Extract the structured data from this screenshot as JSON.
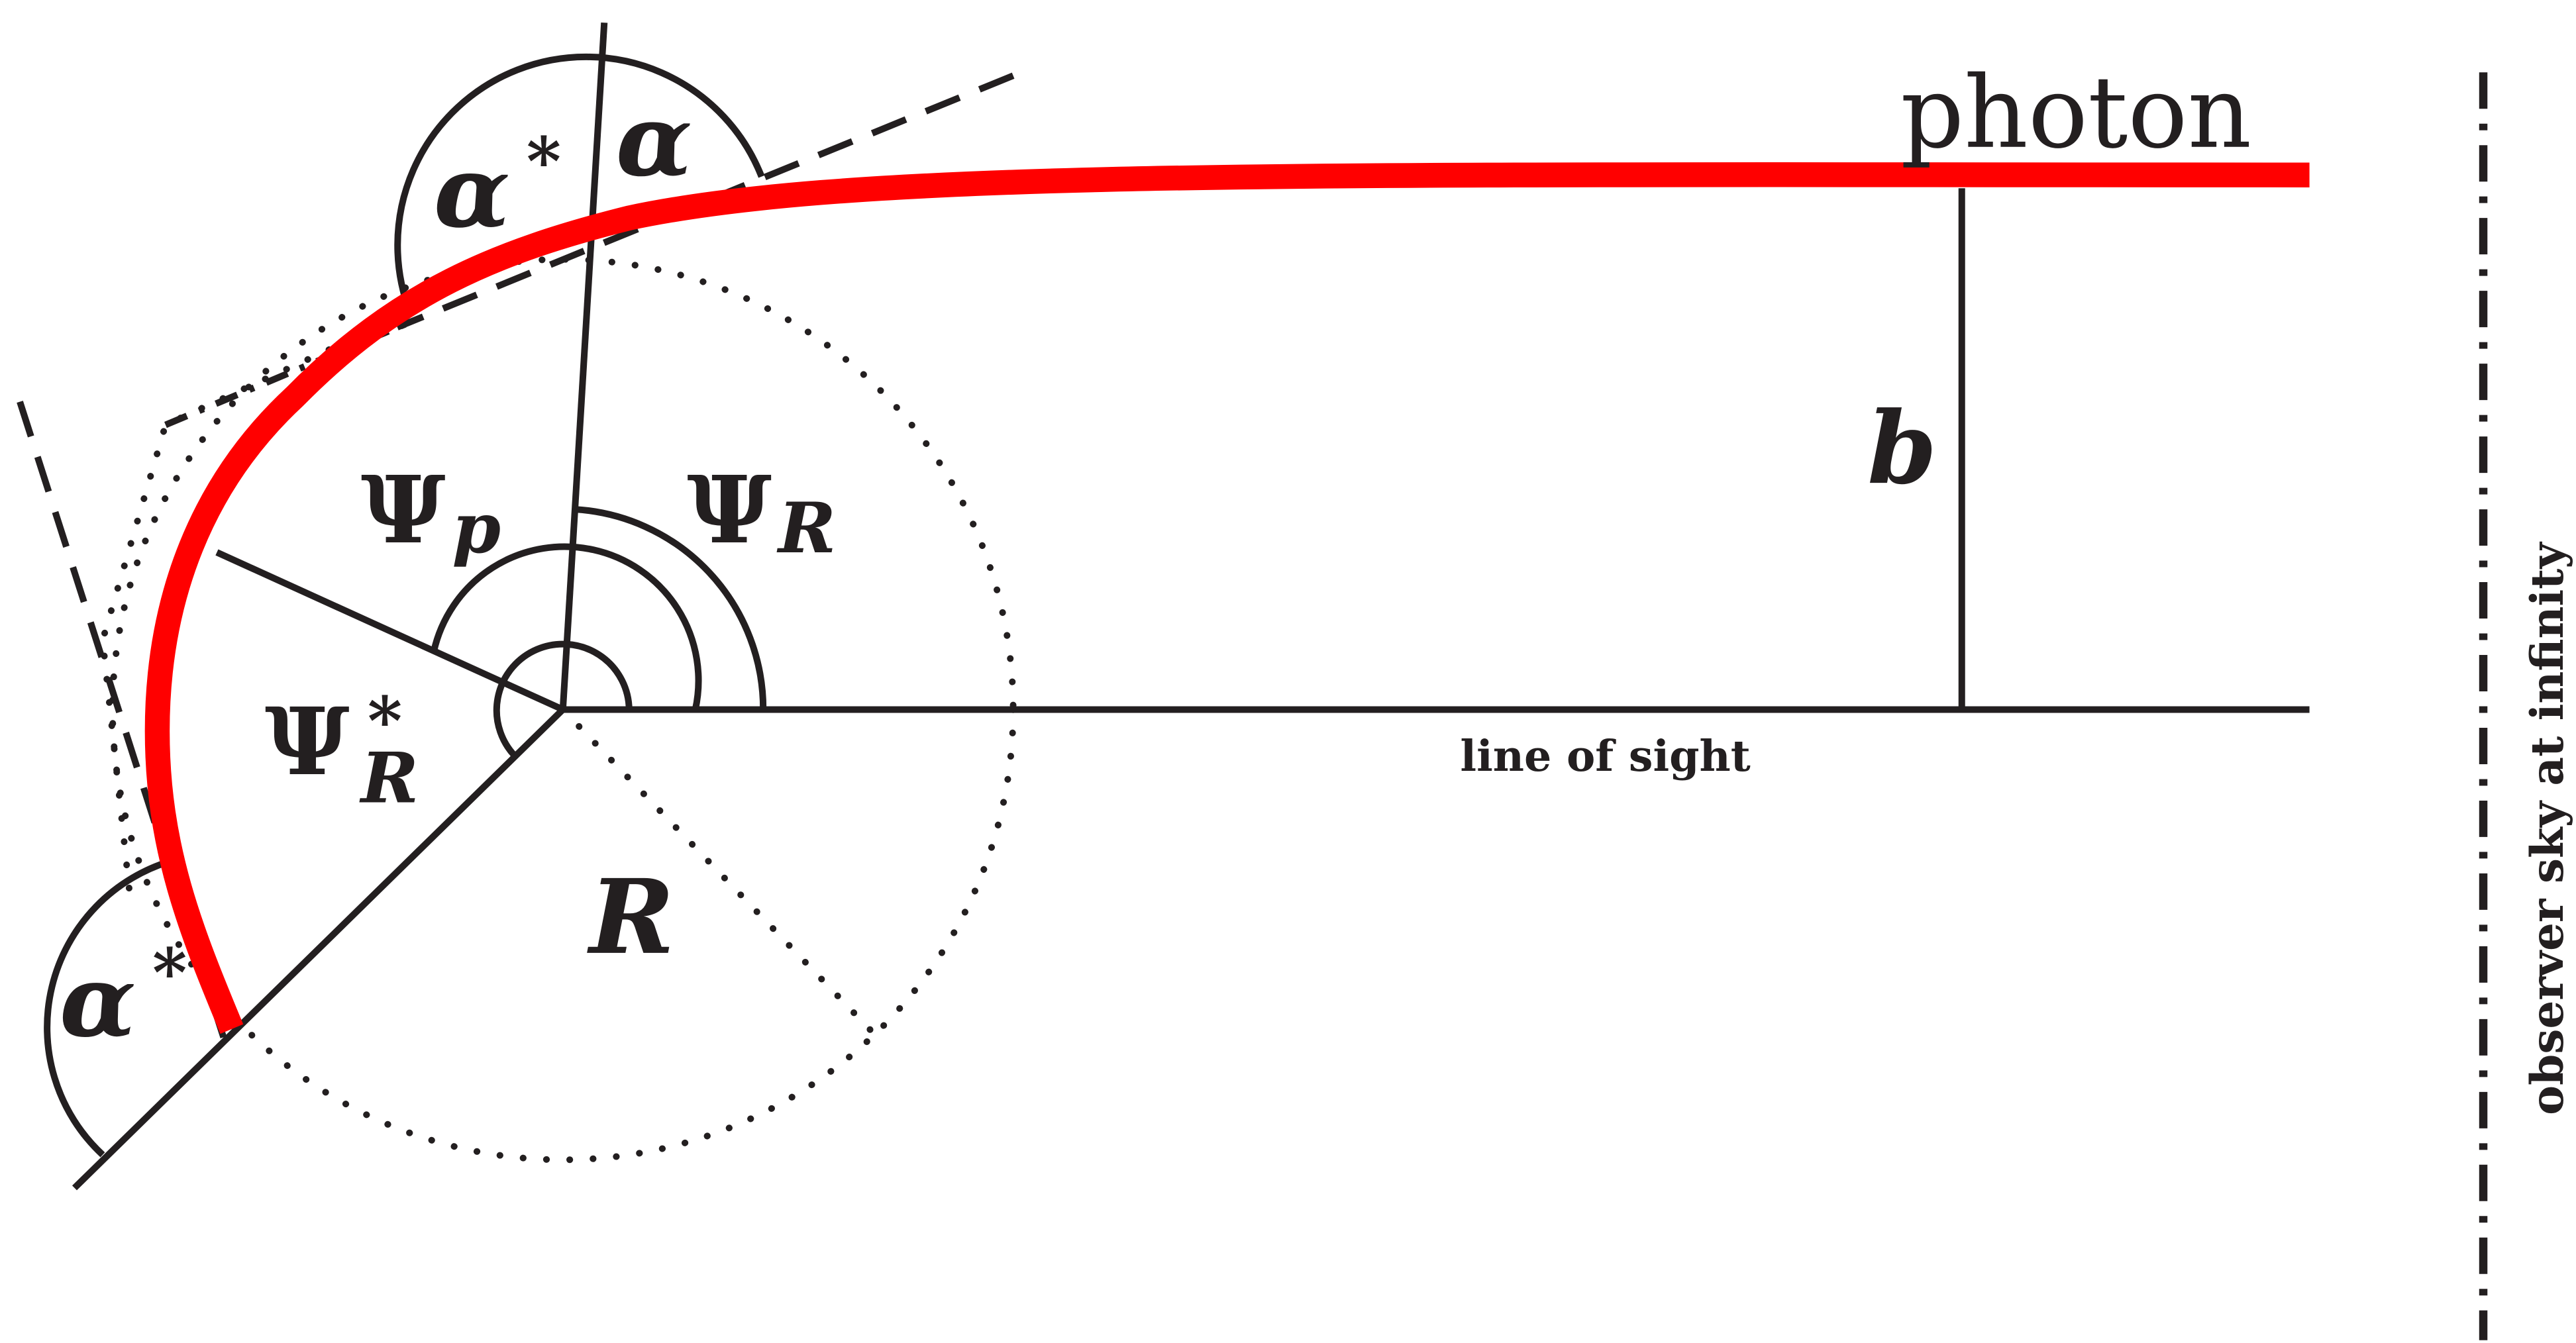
{
  "colors": {
    "ink": "#231f20",
    "photon": "#ff0000",
    "background": "#ffffff"
  },
  "labels": {
    "photon": "photon",
    "line_of_sight": "line of sight",
    "observer_sky": "observer sky at infinity",
    "impact_parameter": "b",
    "radius": "R",
    "psi_letter": "Ψ",
    "psi_p_sub": "p",
    "psi_R_sub": "R",
    "psi_R_star_sub": "R",
    "star": "*",
    "alpha_letter": "α"
  }
}
